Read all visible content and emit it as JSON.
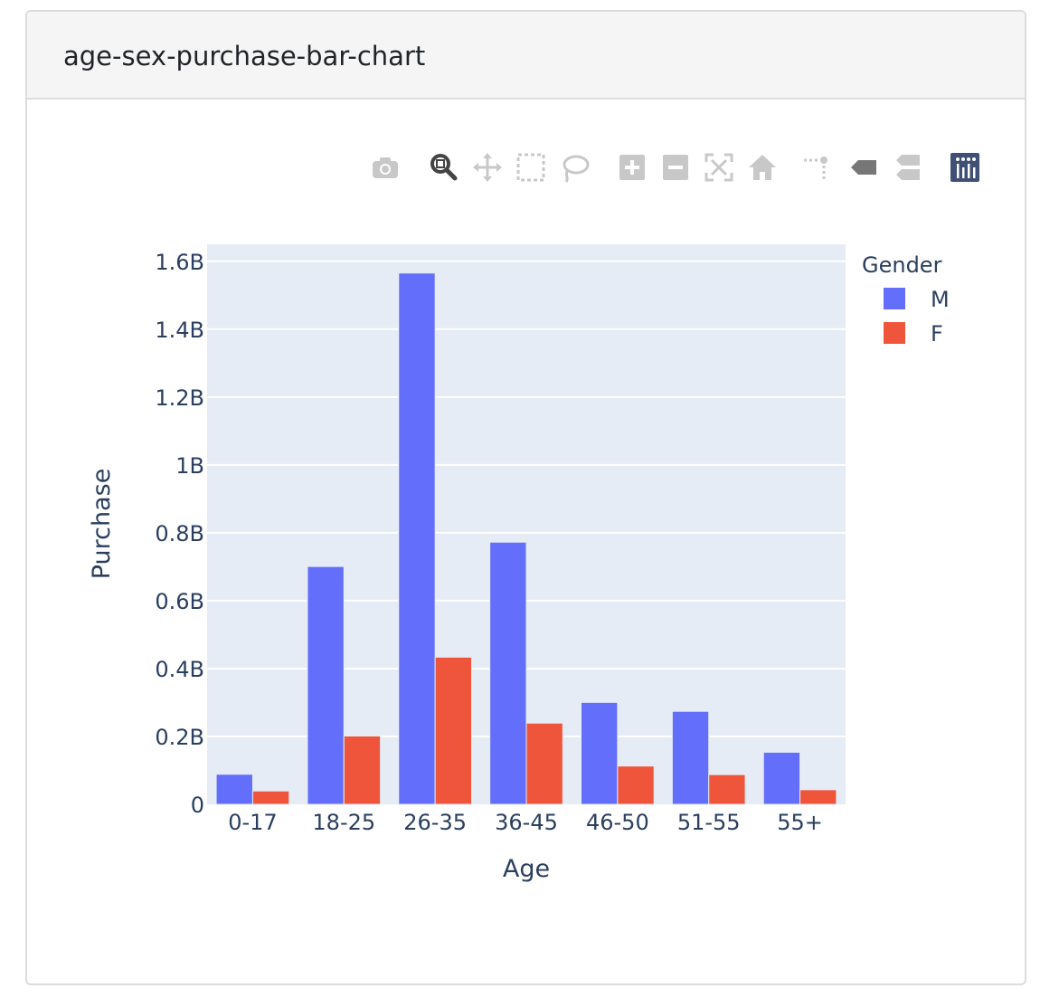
{
  "card": {
    "title": "age-sex-purchase-bar-chart"
  },
  "modebar": {
    "buttons": [
      {
        "icon": "camera-icon"
      },
      {
        "icon": "zoom-icon",
        "active": true
      },
      {
        "icon": "pan-icon"
      },
      {
        "icon": "box-select-icon"
      },
      {
        "icon": "lasso-select-icon"
      },
      {
        "icon": "zoom-in-icon"
      },
      {
        "icon": "zoom-out-icon"
      },
      {
        "icon": "autoscale-icon"
      },
      {
        "icon": "reset-axes-icon"
      },
      {
        "icon": "spike-lines-icon"
      },
      {
        "icon": "hover-closest-icon"
      },
      {
        "icon": "hover-compare-icon"
      },
      {
        "icon": "plotly-logo-icon"
      }
    ]
  },
  "chart_data": {
    "type": "bar",
    "categories": [
      "0-17",
      "18-25",
      "26-35",
      "36-45",
      "46-50",
      "51-55",
      "55+"
    ],
    "series": [
      {
        "name": "M",
        "color": "#636efa",
        "values": [
          0.0886,
          0.7007,
          1.5653,
          0.7724,
          0.3003,
          0.274,
          0.1534
        ]
      },
      {
        "name": "F",
        "color": "#ef553b",
        "values": [
          0.0393,
          0.2013,
          0.4336,
          0.2393,
          0.1128,
          0.0876,
          0.043
        ]
      }
    ],
    "values_unit": "billions",
    "xlabel": "Age",
    "ylabel": "Purchase",
    "ylim": [
      0,
      1.65
    ],
    "yticks": [
      0,
      0.2,
      0.4,
      0.6,
      0.8,
      1.0,
      1.2,
      1.4,
      1.6
    ],
    "ytick_labels": [
      "0",
      "0.2B",
      "0.4B",
      "0.6B",
      "0.8B",
      "1B",
      "1.2B",
      "1.4B",
      "1.6B"
    ],
    "legend_title": "Gender",
    "legend_position": "top-right",
    "grid": true,
    "plot_bg": "#e5ecf6"
  }
}
